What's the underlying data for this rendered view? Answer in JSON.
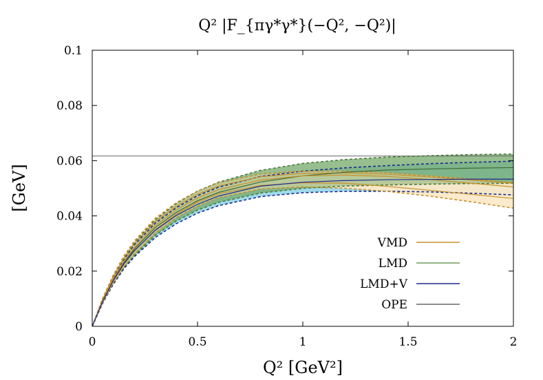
{
  "chart_data": {
    "type": "line",
    "title": "Q² |F_{πγ*γ*}(−Q², −Q²)|",
    "xlabel": "Q² [GeV²]",
    "ylabel": "[GeV]",
    "xlim": [
      0,
      2
    ],
    "ylim": [
      0,
      0.1
    ],
    "x_ticks": [
      0,
      0.5,
      1,
      1.5,
      2
    ],
    "x_tick_labels": [
      "0",
      "0.5",
      "1",
      "1.5",
      "2"
    ],
    "y_ticks": [
      0,
      0.02,
      0.04,
      0.06,
      0.08,
      0.1
    ],
    "y_tick_labels": [
      "0",
      "0.02",
      "0.04",
      "0.06",
      "0.08",
      "0.1"
    ],
    "grid": false,
    "legend_position": "bottom-right",
    "legend": [
      {
        "label": "VMD",
        "color": "#c8902a"
      },
      {
        "label": "LMD",
        "color": "#6e9a5e"
      },
      {
        "label": "LMD+V",
        "color": "#1c2a8c"
      },
      {
        "label": "OPE",
        "color": "#666666"
      }
    ],
    "x": [
      0,
      0.05,
      0.1,
      0.15,
      0.2,
      0.3,
      0.4,
      0.5,
      0.6,
      0.8,
      1.0,
      1.2,
      1.4,
      1.6,
      1.8,
      2.0
    ],
    "series": [
      {
        "name": "VMD",
        "color": "#c8902a",
        "band_fill": "#fbe9c8",
        "central": [
          0,
          0.0095,
          0.0172,
          0.0235,
          0.0285,
          0.0365,
          0.0422,
          0.0465,
          0.0495,
          0.053,
          0.0545,
          0.0548,
          0.0543,
          0.0532,
          0.0518,
          0.0505
        ],
        "upper": [
          0,
          0.0103,
          0.0186,
          0.0254,
          0.0309,
          0.0392,
          0.0448,
          0.049,
          0.052,
          0.0552,
          0.0562,
          0.0562,
          0.0556,
          0.0545,
          0.0533,
          0.052
        ],
        "lower": [
          0,
          0.0087,
          0.0158,
          0.0216,
          0.0261,
          0.0338,
          0.0394,
          0.0435,
          0.0466,
          0.0497,
          0.0505,
          0.05,
          0.0489,
          0.0472,
          0.0451,
          0.0428
        ],
        "inner_upper": [
          0,
          0.0099,
          0.018,
          0.0247,
          0.03,
          0.038,
          0.0435,
          0.0478,
          0.0508,
          0.0542,
          0.0554,
          0.0556,
          0.0551,
          0.0541,
          0.053,
          0.0518
        ],
        "inner_lower": [
          0,
          0.0091,
          0.0165,
          0.0225,
          0.0272,
          0.035,
          0.0407,
          0.045,
          0.048,
          0.051,
          0.052,
          0.0518,
          0.0507,
          0.0493,
          0.0478,
          0.0463
        ]
      },
      {
        "name": "LMD",
        "color": "#6e9a5e",
        "band_fill": "#74a86a",
        "central": [
          0,
          0.0092,
          0.0168,
          0.023,
          0.028,
          0.0358,
          0.0413,
          0.0455,
          0.0485,
          0.0523,
          0.0545,
          0.0558,
          0.0566,
          0.057,
          0.0573,
          0.0575
        ],
        "upper": [
          0,
          0.01,
          0.0182,
          0.025,
          0.0303,
          0.0386,
          0.0445,
          0.049,
          0.0522,
          0.0565,
          0.059,
          0.0604,
          0.0613,
          0.0618,
          0.0622,
          0.0624
        ],
        "lower": [
          0,
          0.0084,
          0.0154,
          0.0211,
          0.0257,
          0.033,
          0.0382,
          0.0421,
          0.0449,
          0.0483,
          0.05,
          0.0508,
          0.0512,
          0.0515,
          0.0517,
          0.0518
        ]
      },
      {
        "name": "LMD+V",
        "color": "#1c2a8c",
        "band_fill": "#8fd4e6",
        "central": [
          0,
          0.0091,
          0.0166,
          0.0226,
          0.0274,
          0.0348,
          0.0402,
          0.0442,
          0.0472,
          0.0508,
          0.0522,
          0.0528,
          0.0531,
          0.0532,
          0.0533,
          0.0533
        ],
        "upper": [
          0,
          0.0098,
          0.0178,
          0.0243,
          0.0295,
          0.0374,
          0.043,
          0.0473,
          0.0504,
          0.0543,
          0.0562,
          0.0574,
          0.0582,
          0.0589,
          0.0594,
          0.0598
        ],
        "lower": [
          0,
          0.0084,
          0.0152,
          0.0208,
          0.0252,
          0.0322,
          0.0372,
          0.041,
          0.0437,
          0.047,
          0.0484,
          0.0489,
          0.0489,
          0.0487,
          0.0482,
          0.0476
        ]
      },
      {
        "name": "OPE",
        "color": "#666666",
        "constant": 0.0617
      }
    ]
  }
}
